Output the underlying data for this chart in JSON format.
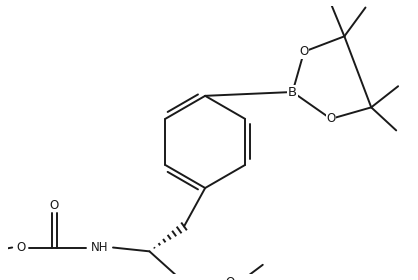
{
  "bg_color": "#ffffff",
  "line_color": "#1a1a1a",
  "line_width": 1.4,
  "font_size": 8.5,
  "figsize": [
    4.18,
    2.8
  ],
  "dpi": 100,
  "xlim": [
    0,
    418
  ],
  "ylim": [
    0,
    280
  ]
}
